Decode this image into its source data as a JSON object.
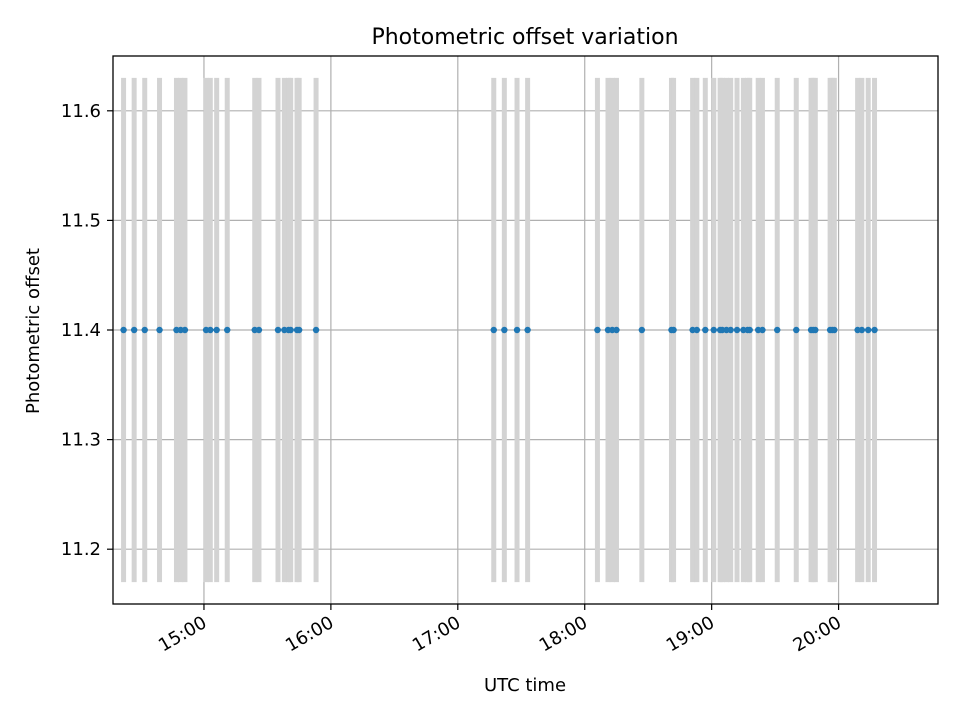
{
  "chart_data": {
    "type": "scatter",
    "title": "Photometric offset variation",
    "xlabel": "UTC time",
    "ylabel": "Photometric offset",
    "x_ticks": [
      "15:00",
      "16:00",
      "17:00",
      "18:00",
      "19:00",
      "20:00"
    ],
    "y_ticks": [
      "11.2",
      "11.3",
      "11.4",
      "11.5",
      "11.6"
    ],
    "xlim": [
      "14:17",
      "20:47"
    ],
    "ylim": [
      11.15,
      11.65
    ],
    "grid": true,
    "colors": {
      "points": "#1f77b4",
      "errorbars": "#d3d3d3",
      "grid": "#b0b0b0"
    },
    "series": [
      {
        "x": [
          "14:22",
          "14:27",
          "14:32",
          "14:39",
          "14:47",
          "14:49",
          "14:51",
          "15:01",
          "15:03",
          "15:06",
          "15:11",
          "15:24",
          "15:26",
          "15:35",
          "15:38",
          "15:40",
          "15:41",
          "15:44",
          "15:45",
          "15:53",
          "17:17",
          "17:22",
          "17:28",
          "17:33",
          "18:06",
          "18:11",
          "18:13",
          "18:15",
          "18:27",
          "18:41",
          "18:42",
          "18:51",
          "18:53",
          "18:57",
          "19:01",
          "19:04",
          "19:05",
          "19:07",
          "19:09",
          "19:12",
          "19:15",
          "19:17",
          "19:18",
          "19:22",
          "19:24",
          "19:31",
          "19:40",
          "19:47",
          "19:48",
          "19:49",
          "19:56",
          "19:57",
          "19:58",
          "20:09",
          "20:11",
          "20:14",
          "20:17"
        ],
        "y": [
          11.4,
          11.4,
          11.4,
          11.4,
          11.4,
          11.4,
          11.4,
          11.4,
          11.4,
          11.4,
          11.4,
          11.4,
          11.4,
          11.4,
          11.4,
          11.4,
          11.4,
          11.4,
          11.4,
          11.4,
          11.4,
          11.4,
          11.4,
          11.4,
          11.4,
          11.4,
          11.4,
          11.4,
          11.4,
          11.4,
          11.4,
          11.4,
          11.4,
          11.4,
          11.4,
          11.4,
          11.4,
          11.4,
          11.4,
          11.4,
          11.4,
          11.4,
          11.4,
          11.4,
          11.4,
          11.4,
          11.4,
          11.4,
          11.4,
          11.4,
          11.4,
          11.4,
          11.4,
          11.4,
          11.4,
          11.4,
          11.4
        ],
        "yerr": 0.23
      }
    ]
  }
}
